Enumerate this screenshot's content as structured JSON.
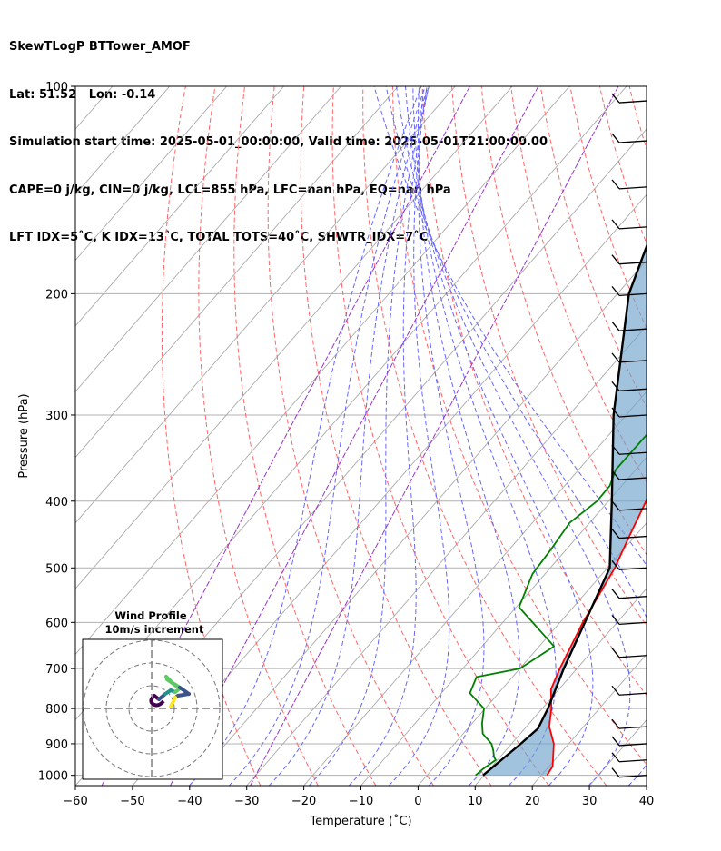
{
  "header": {
    "line1": "SkewTLogP BTTower_AMOF",
    "line2": "Lat: 51.52   Lon: -0.14",
    "line3": "Simulation start time: 2025-05-01_00:00:00, Valid time: 2025-05-01T21:00:00.00",
    "line4": "CAPE=0 j/kg, CIN=0 j/kg, LCL=855 hPa, LFC=nan hPa, EQ=nan hPa",
    "line5": "LFT IDX=5˚C, K IDX=13˚C, TOTAL TOTS=40˚C, SHWTR_IDX=7˚C"
  },
  "axes": {
    "xlabel": "Temperature (˚C)",
    "ylabel": "Pressure (hPa)",
    "xticks": [
      "−60",
      "−50",
      "−40",
      "−30",
      "−20",
      "−10",
      "0",
      "10",
      "20",
      "30",
      "40"
    ],
    "yticks": [
      "100",
      "200",
      "300",
      "400",
      "500",
      "600",
      "700",
      "800",
      "900",
      "1000"
    ]
  },
  "hodograph": {
    "title": "Wind Profile",
    "subtitle": "10m/s increment"
  },
  "colors": {
    "temperature": "#ff0000",
    "dewpoint": "#008000",
    "parcel": "#000000",
    "cape_fill": "#6fa3cc",
    "dry_adiabat": "#ff6666",
    "moist_adiabat": "#6666ff",
    "mixing_ratio": "#9933cc",
    "isotherm": "#aaaaaa",
    "grid": "#b0b0b0"
  },
  "chart_data": {
    "type": "line",
    "xlim": [
      -60,
      40
    ],
    "ylim": [
      1035,
      100
    ],
    "yscale": "log",
    "skew": true,
    "grid": true,
    "series": [
      {
        "key": "temperature",
        "x": [
          21,
          20.6,
          17.4,
          14,
          11.6,
          8.6,
          7,
          4,
          1.3,
          -1,
          -3.4,
          -7.6,
          -10.2,
          -12.5,
          -13.3,
          -13.8,
          -12.5,
          -10.5,
          -7.9,
          -6.2,
          -4.6,
          -1.9,
          -0.5,
          -0.8,
          -1
        ],
        "y": [
          1000,
          970,
          900,
          850,
          800,
          750,
          700,
          600,
          500,
          450,
          400,
          350,
          320,
          280,
          250,
          235,
          200,
          188,
          173,
          155,
          140,
          127,
          118,
          108,
          100
        ]
      },
      {
        "key": "dewpoint",
        "x": [
          8.5,
          8.8,
          9.7,
          8.9,
          7.8,
          6.5,
          3.4,
          1.7,
          -0.2,
          -5,
          -6.3,
          0,
          2.6,
          -9.5,
          -12.2,
          -12.7,
          -13.5,
          -12,
          -12.1,
          -13.5,
          -13.4,
          -13.3,
          -13.7,
          -15.2,
          -19.3,
          -21.4,
          -21,
          -20.5,
          -17.4,
          -14.4,
          -16.1,
          -16.2
        ],
        "y": [
          1000,
          980,
          950,
          940,
          920,
          900,
          870,
          840,
          800,
          760,
          720,
          700,
          650,
          570,
          510,
          470,
          430,
          400,
          380,
          360,
          320,
          290,
          250,
          228,
          200,
          185,
          165,
          155,
          150,
          130,
          115,
          100
        ]
      },
      {
        "key": "parcel",
        "x": [
          9.8,
          11.6,
          12.3,
          11,
          7.7,
          0.4,
          -9.4,
          -22.2,
          -38,
          -56
        ],
        "y": [
          1000,
          900,
          855,
          800,
          700,
          500,
          400,
          300,
          200,
          100
        ]
      }
    ]
  }
}
